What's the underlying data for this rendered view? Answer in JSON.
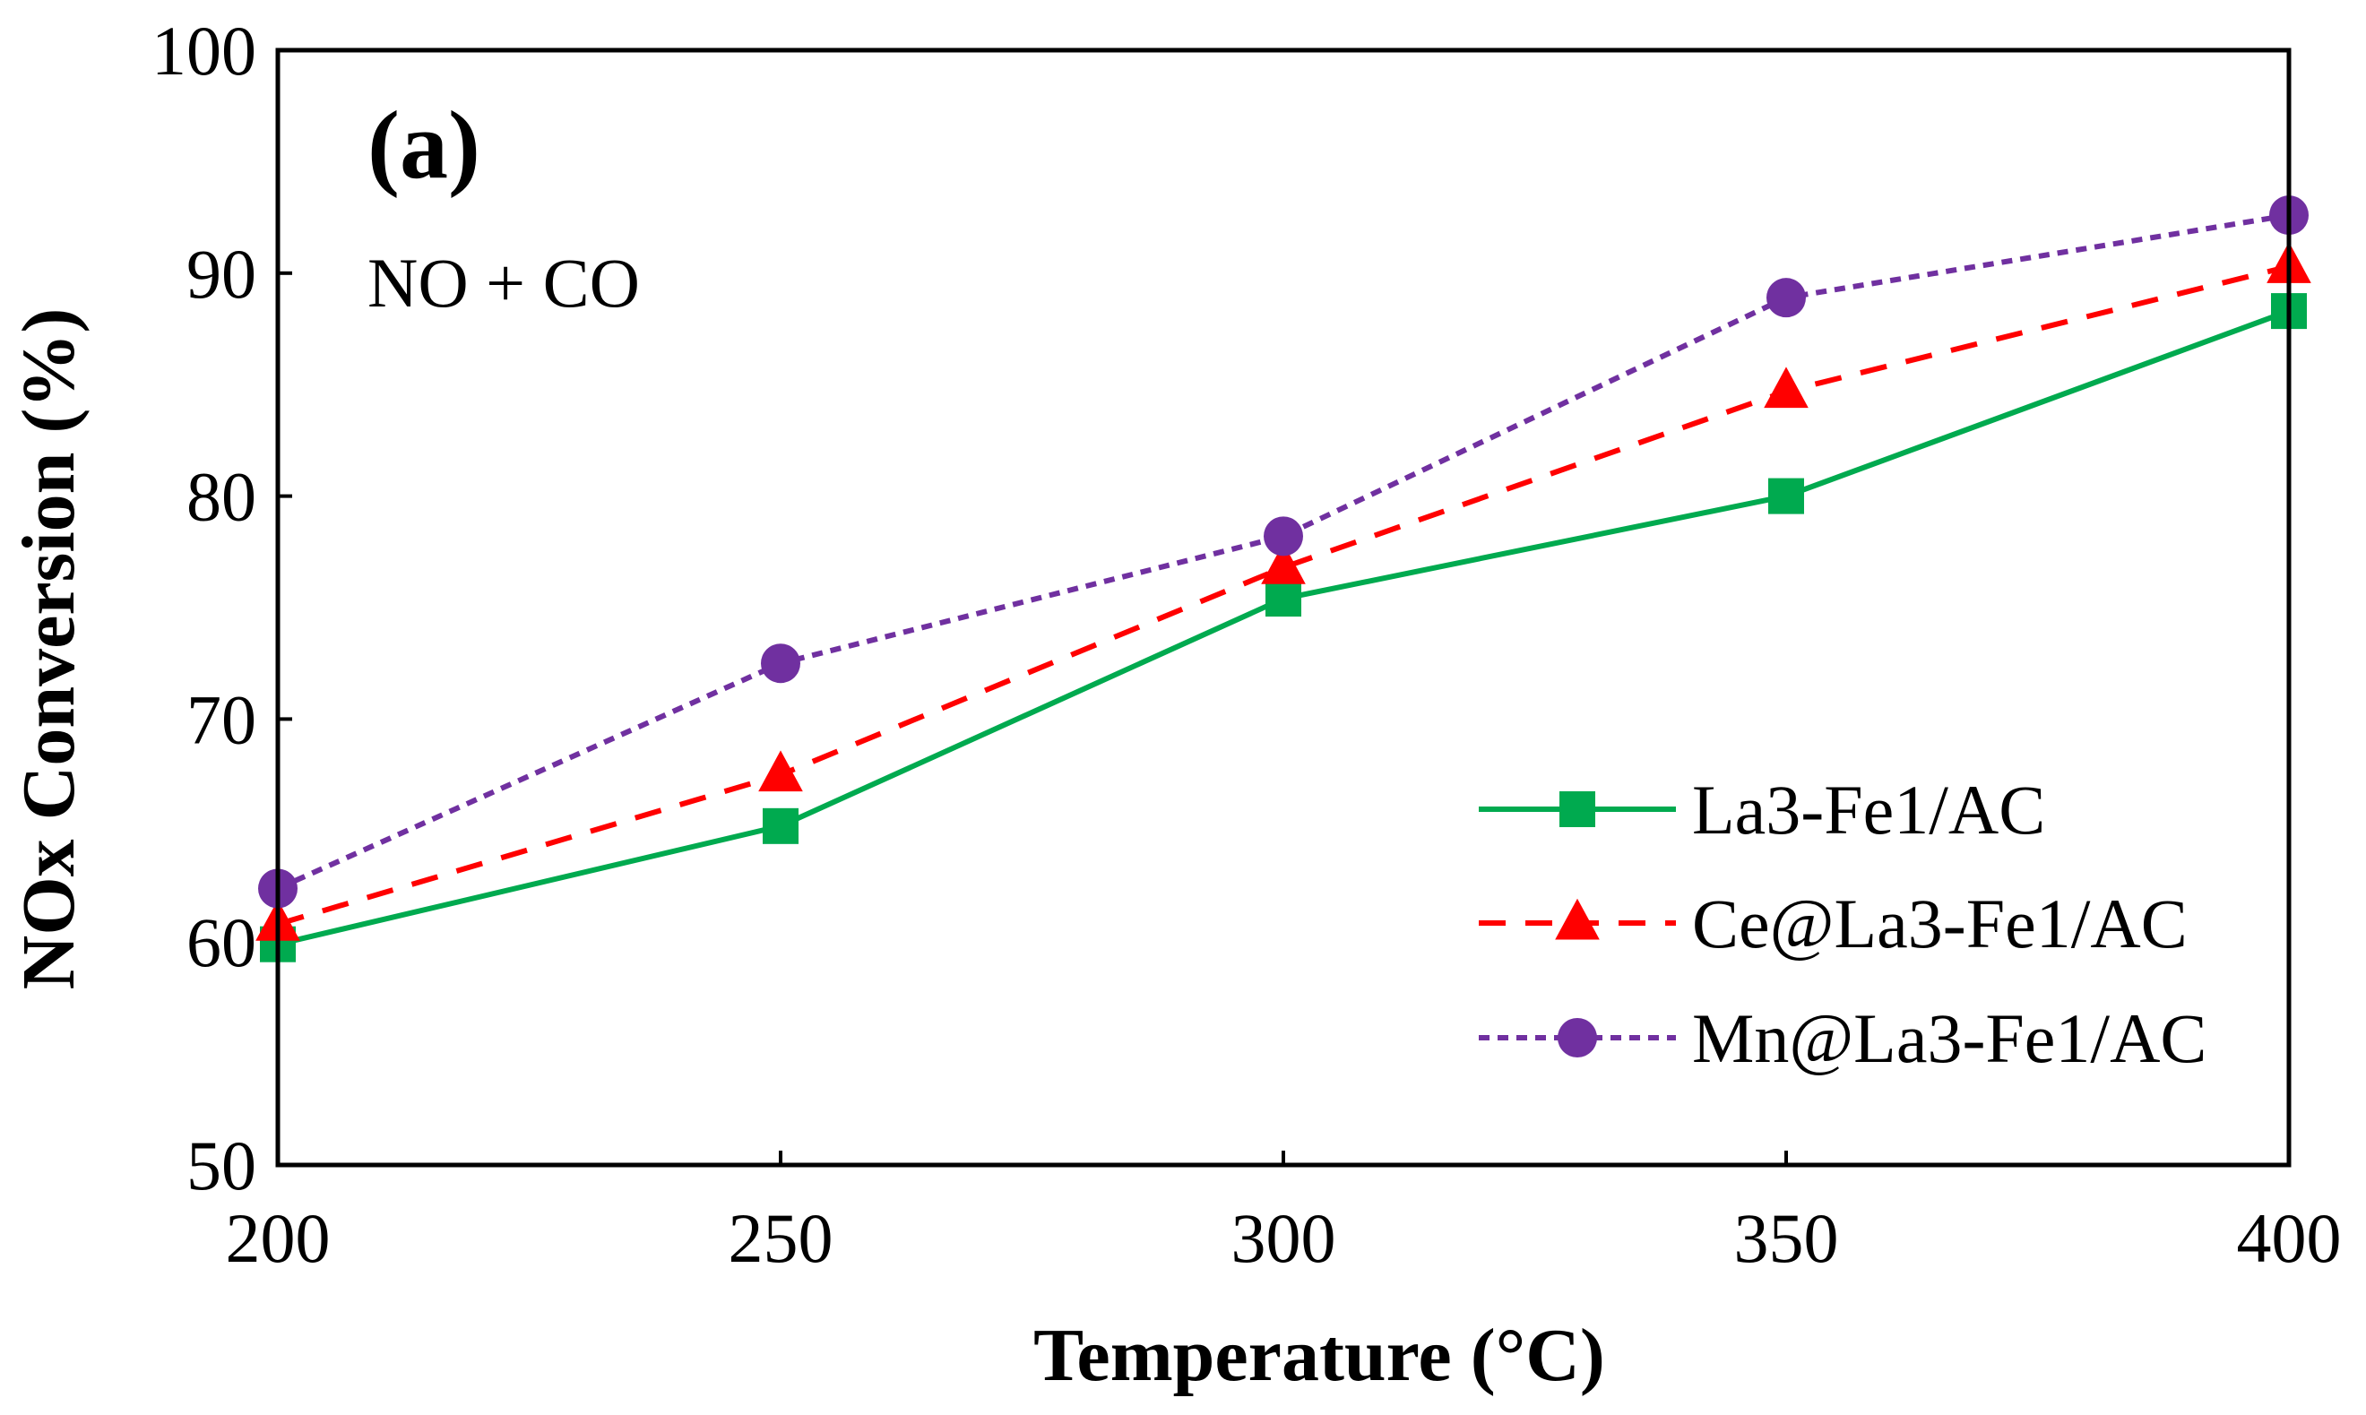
{
  "chart_data": {
    "type": "line",
    "title": "",
    "panel_label": "(a)",
    "annotation": "NO + CO",
    "xlabel": "Temperature (°C)",
    "ylabel": "NOx Conversion (%)",
    "xlim": [
      200,
      400
    ],
    "ylim": [
      50,
      100
    ],
    "xticks": [
      200,
      250,
      300,
      350,
      400
    ],
    "yticks": [
      50,
      60,
      70,
      80,
      90,
      100
    ],
    "x": [
      200,
      250,
      300,
      350,
      400
    ],
    "grid": false,
    "legend_position": "bottom-right",
    "series": [
      {
        "name": "La3-Fe1/AC",
        "values": [
          59.9,
          65.2,
          75.4,
          80.0,
          88.3
        ],
        "color": "#00AA4F",
        "marker": "square",
        "line_style": "solid"
      },
      {
        "name": "Ce@La3-Fe1/AC",
        "values": [
          60.8,
          67.5,
          76.8,
          84.7,
          90.3
        ],
        "color": "#FF0000",
        "marker": "triangle",
        "line_style": "dashed"
      },
      {
        "name": "Mn@La3-Fe1/AC",
        "values": [
          62.4,
          72.5,
          78.2,
          88.9,
          92.6
        ],
        "color": "#7030A0",
        "marker": "circle",
        "line_style": "dotted"
      }
    ]
  }
}
